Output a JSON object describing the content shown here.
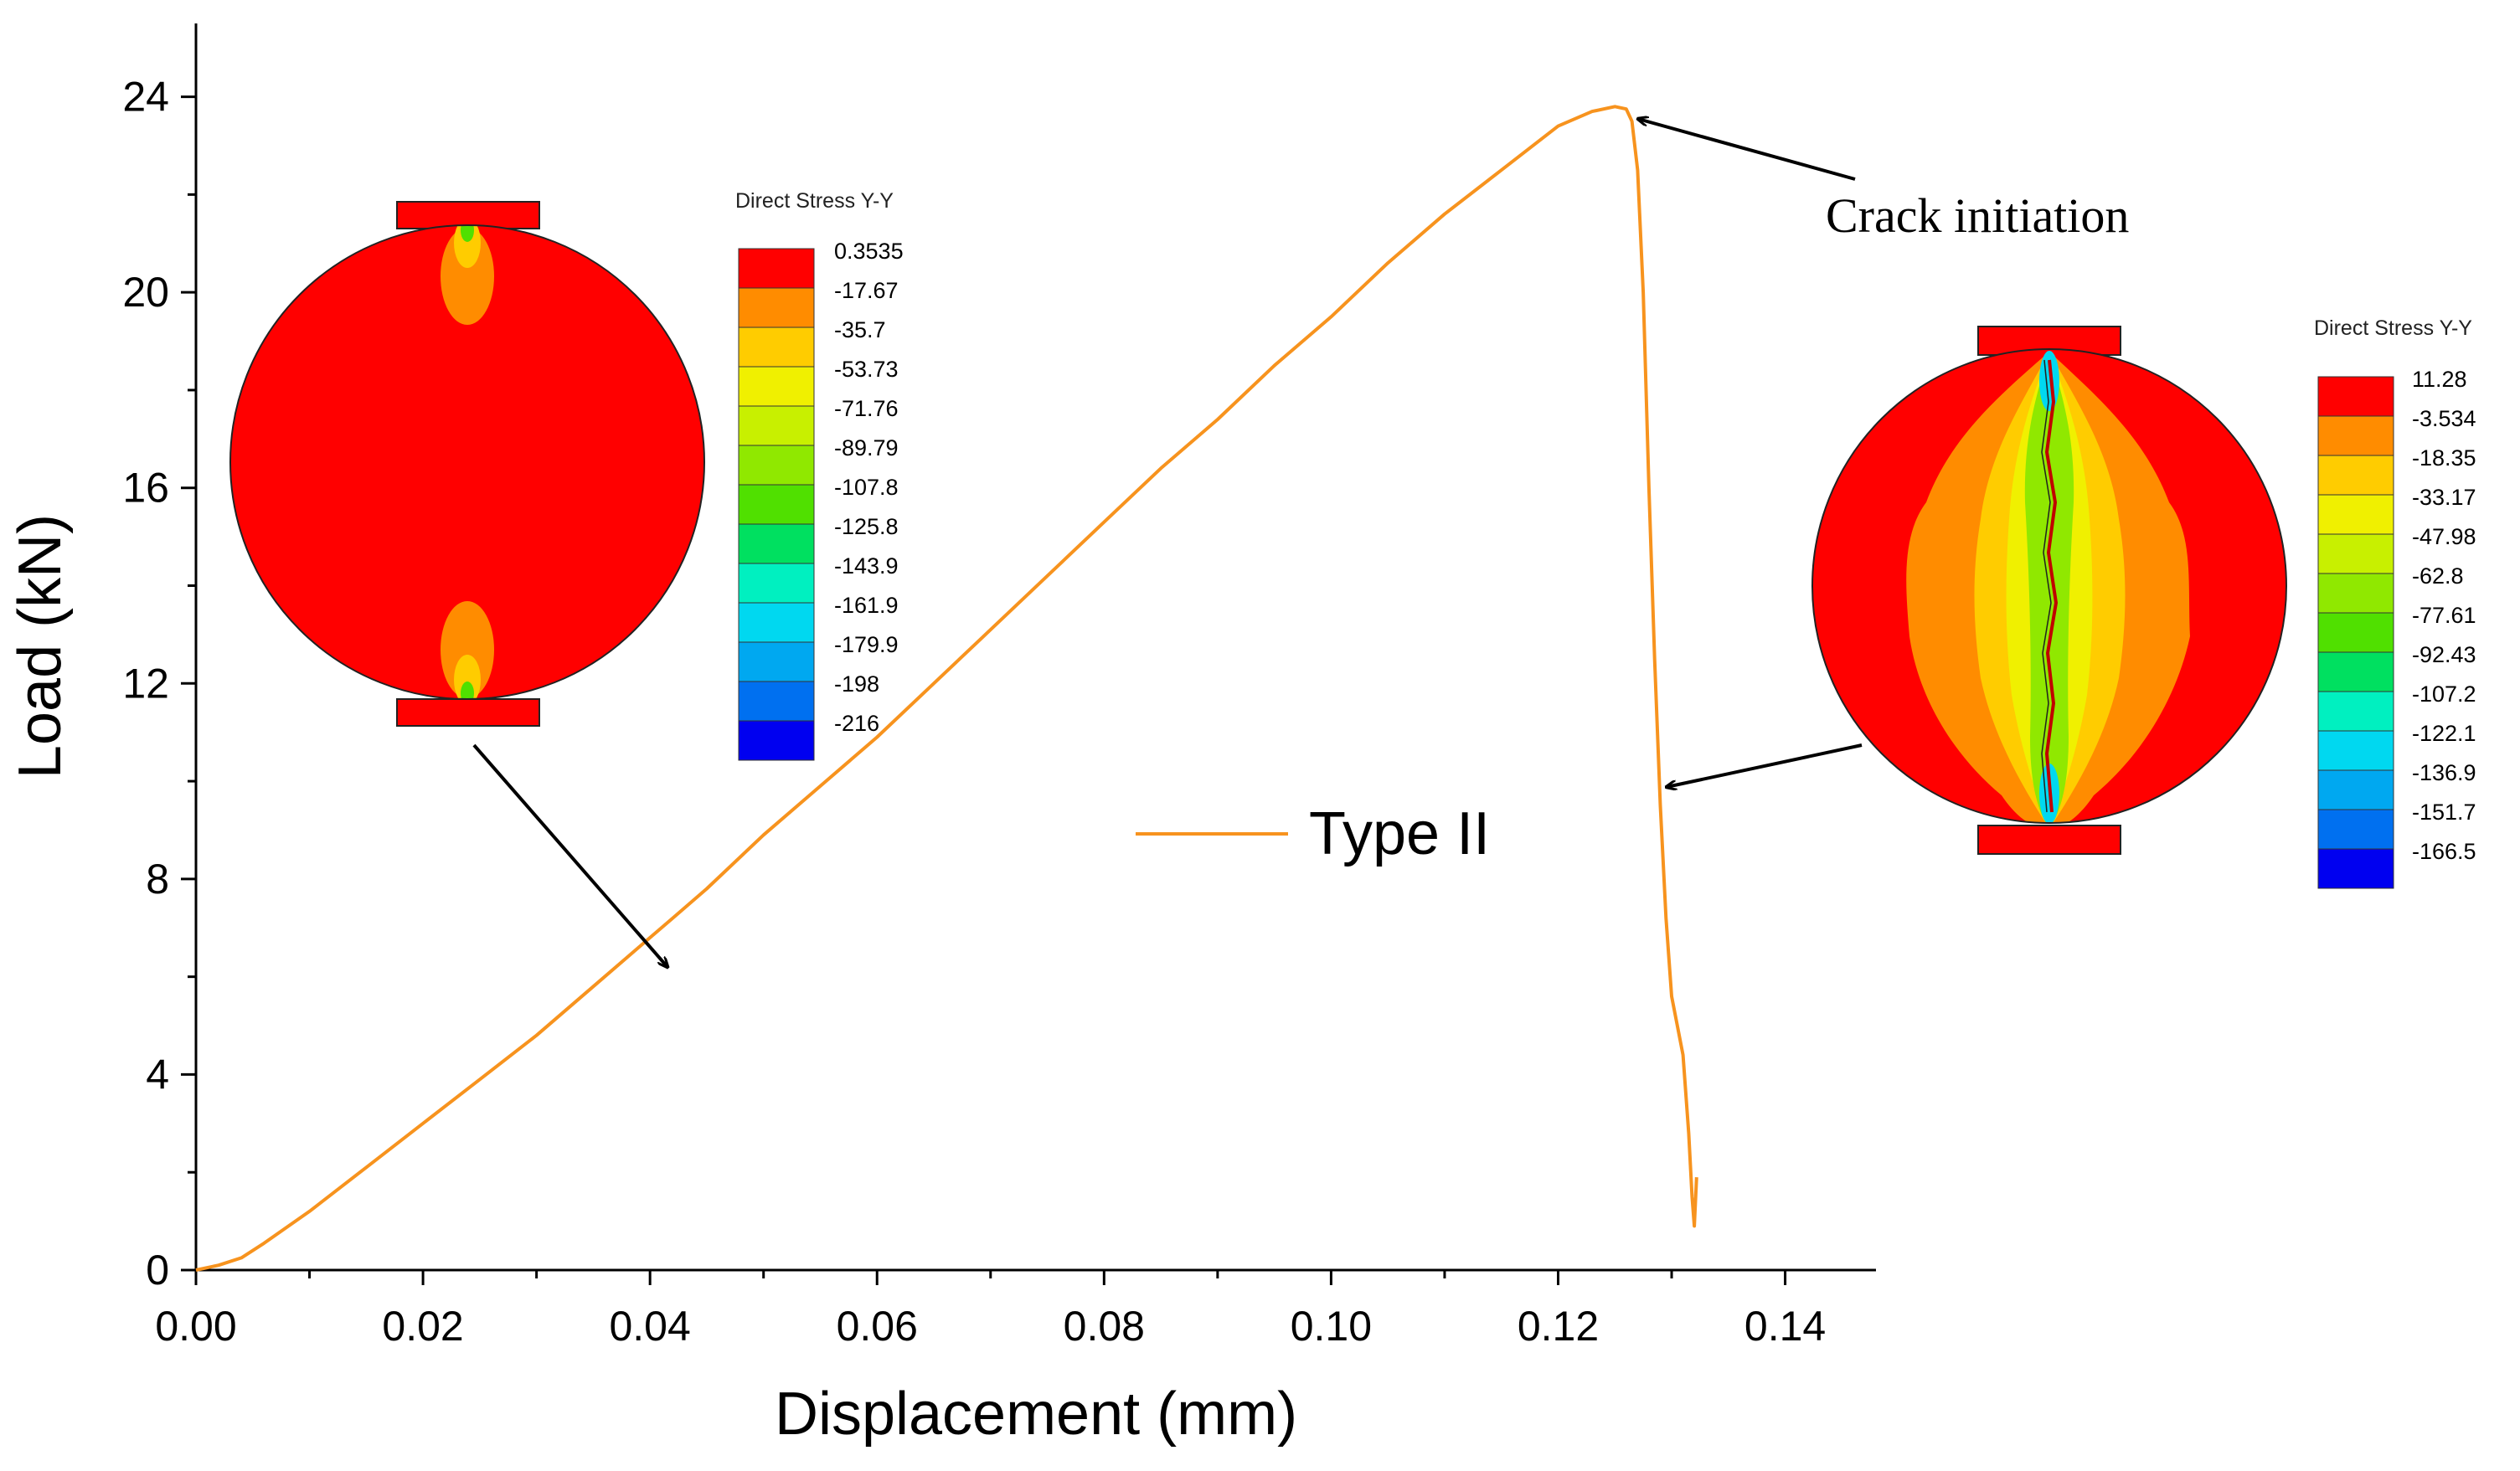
{
  "chart_data": {
    "type": "line",
    "xlabel": "Displacement (mm)",
    "ylabel": "Load (kN)",
    "xlim": [
      0,
      0.148
    ],
    "ylim": [
      0,
      25.5
    ],
    "xticks": [
      "0.00",
      "0.02",
      "0.04",
      "0.06",
      "0.08",
      "0.10",
      "0.12",
      "0.14"
    ],
    "xtick_values": [
      0,
      0.02,
      0.04,
      0.06,
      0.08,
      0.1,
      0.12,
      0.14
    ],
    "yticks": [
      "0",
      "4",
      "8",
      "12",
      "16",
      "20",
      "24"
    ],
    "ytick_values": [
      0,
      4,
      8,
      12,
      16,
      20,
      24
    ],
    "grid": false,
    "legend_position": "center",
    "series": [
      {
        "name": "Type II",
        "color": "#F7931E",
        "x": [
          0,
          0.002,
          0.004,
          0.006,
          0.01,
          0.015,
          0.02,
          0.025,
          0.03,
          0.035,
          0.04,
          0.042,
          0.045,
          0.05,
          0.055,
          0.06,
          0.065,
          0.07,
          0.075,
          0.08,
          0.085,
          0.09,
          0.095,
          0.1,
          0.105,
          0.11,
          0.115,
          0.12,
          0.123,
          0.125,
          0.126,
          0.1265,
          0.127,
          0.1275,
          0.128,
          0.1285,
          0.129,
          0.1295,
          0.13,
          0.1305,
          0.131,
          0.1315,
          0.1318,
          0.132,
          0.1322
        ],
        "y": [
          0,
          0.1,
          0.25,
          0.55,
          1.2,
          2.1,
          3.0,
          3.9,
          4.8,
          5.8,
          6.8,
          7.2,
          7.8,
          8.9,
          9.9,
          10.9,
          12.0,
          13.1,
          14.2,
          15.3,
          16.4,
          17.4,
          18.5,
          19.5,
          20.6,
          21.6,
          22.5,
          23.4,
          23.7,
          23.8,
          23.75,
          23.5,
          22.5,
          20.0,
          16.0,
          12.5,
          9.5,
          7.2,
          5.6,
          5.0,
          4.4,
          2.8,
          1.5,
          0.9,
          1.9
        ]
      }
    ],
    "annotations": [
      "Crack initiation"
    ],
    "insets": [
      {
        "title": "Direct Stress Y-Y",
        "legend_values": [
          "0.3535",
          "-17.67",
          "-35.7",
          "-53.73",
          "-71.76",
          "-89.79",
          "-107.8",
          "-125.8",
          "-143.9",
          "-161.9",
          "-179.9",
          "-198",
          "-216"
        ],
        "points_to": {
          "x": 0.042,
          "y": 6.1
        }
      },
      {
        "title": "Direct Stress Y-Y",
        "legend_values": [
          "11.28",
          "-3.534",
          "-18.35",
          "-33.17",
          "-47.98",
          "-62.8",
          "-77.61",
          "-92.43",
          "-107.2",
          "-122.1",
          "-136.9",
          "-151.7",
          "-166.5"
        ],
        "points_to": {
          "x": 0.1295,
          "y": 10.0
        }
      }
    ],
    "crack_point": {
      "x": 0.1262,
      "y": 23.8
    }
  },
  "colors": {
    "axis": "#000000",
    "arrow": "#000000",
    "contour_scale": [
      "#FF0000",
      "#FF8C00",
      "#FFCC00",
      "#F0F000",
      "#C8F000",
      "#90E800",
      "#50E000",
      "#00E060",
      "#00F0C0",
      "#00D8F0",
      "#00A8F0",
      "#0070F0",
      "#0000F0"
    ]
  }
}
